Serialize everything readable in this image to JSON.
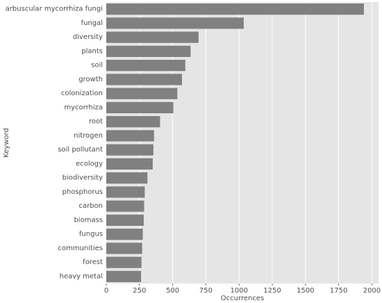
{
  "chart_data": {
    "type": "bar",
    "orientation": "horizontal",
    "xlabel": "Occurrences",
    "ylabel": "Keyword",
    "xlim": [
      0,
      2050
    ],
    "xticks": [
      0,
      250,
      500,
      750,
      1000,
      1250,
      1500,
      1750,
      2000
    ],
    "categories": [
      "arbuscular mycorrhiza fungi",
      "fungal",
      "diversity",
      "plants",
      "soil",
      "growth",
      "colonization",
      "mycorrhiza",
      "root",
      "nitrogen",
      "soil pollutant",
      "ecology",
      "biodiversity",
      "phosphorus",
      "carbon",
      "biomass",
      "fungus",
      "communities",
      "forest",
      "heavy metal"
    ],
    "values": [
      1940,
      1035,
      695,
      635,
      595,
      570,
      535,
      505,
      405,
      360,
      355,
      350,
      310,
      290,
      285,
      282,
      275,
      270,
      265,
      262
    ],
    "grid": true,
    "bar_color": "#808080",
    "background_color": "#e5e5e5",
    "grid_color": "#ffffff",
    "text_color": "#4d4d4d"
  }
}
